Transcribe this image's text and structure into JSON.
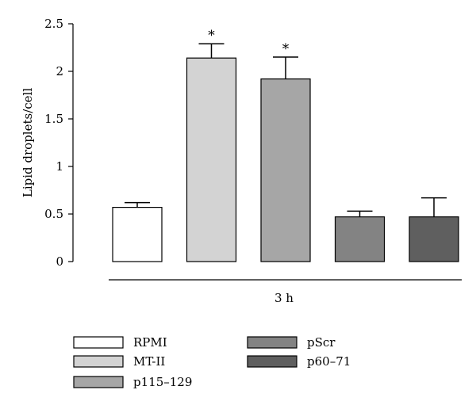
{
  "chart_data": {
    "type": "bar",
    "ylabel": "Lipid droplets/cell",
    "group_label": "3 h",
    "ylim": [
      0,
      2.5
    ],
    "yticks": [
      "0",
      "0.5",
      "1",
      "1.5",
      "2",
      "2.5"
    ],
    "ytick_values": [
      0,
      0.5,
      1,
      1.5,
      2,
      2.5
    ],
    "categories": [
      "RPMI",
      "MT-II",
      "p115–129",
      "pScr",
      "p60–71"
    ],
    "values": [
      0.57,
      2.14,
      1.92,
      0.47,
      0.47
    ],
    "errors": [
      0.05,
      0.15,
      0.23,
      0.06,
      0.2
    ],
    "significance": [
      "",
      "*",
      "*",
      "",
      ""
    ],
    "colors": [
      "#ffffff",
      "#d3d3d3",
      "#a6a6a6",
      "#838383",
      "#5f5f5f"
    ],
    "legend": {
      "placement": "bottom",
      "entries": [
        "RPMI",
        "MT-II",
        "p115–129",
        "pScr",
        "p60–71"
      ]
    }
  }
}
